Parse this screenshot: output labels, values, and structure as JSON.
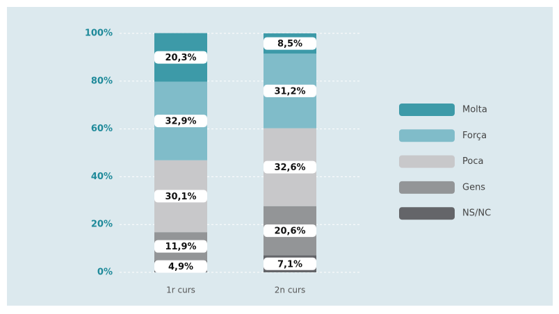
{
  "chart_data": {
    "type": "stacked_bar",
    "categories": [
      "1r curs",
      "2n curs"
    ],
    "series": [
      {
        "name": "NS/NC",
        "color": "#646569",
        "values": [
          4.9,
          7.1
        ],
        "value_labels": [
          "4,9%",
          "7,1%"
        ]
      },
      {
        "name": "Gens",
        "color": "#939597",
        "values": [
          11.9,
          20.6
        ],
        "value_labels": [
          "11,9%",
          "20,6%"
        ]
      },
      {
        "name": "Poca",
        "color": "#c8c8ca",
        "values": [
          30.1,
          32.6
        ],
        "value_labels": [
          "30,1%",
          "32,6%"
        ]
      },
      {
        "name": "Força",
        "color": "#80bcc9",
        "values": [
          32.9,
          31.2
        ],
        "value_labels": [
          "32,9%",
          "31,2%"
        ]
      },
      {
        "name": "Molta",
        "color": "#3d9aa8",
        "values": [
          20.3,
          8.5
        ],
        "value_labels": [
          "20,3%",
          "8,5%"
        ]
      }
    ],
    "ylim": [
      0,
      100
    ],
    "yticks": [
      {
        "value": 0,
        "label": "0%"
      },
      {
        "value": 20,
        "label": "20%"
      },
      {
        "value": 40,
        "label": "40%"
      },
      {
        "value": 60,
        "label": "60%"
      },
      {
        "value": 80,
        "label": "80%"
      },
      {
        "value": 100,
        "label": "100%"
      }
    ],
    "grid": true,
    "legend": "right"
  }
}
